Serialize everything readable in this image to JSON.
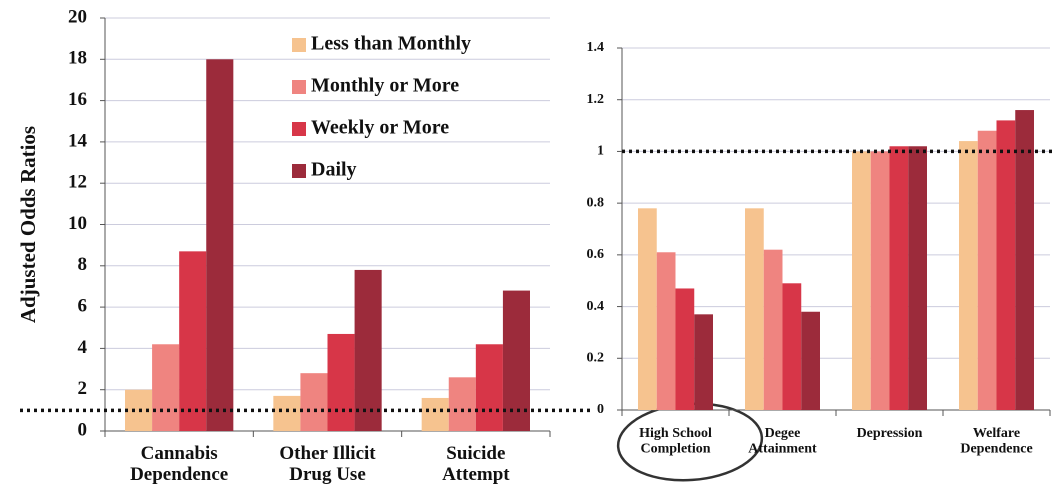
{
  "chart_data": [
    {
      "type": "bar",
      "ylabel": "Adjusted Odds Ratios",
      "categories": [
        "Cannabis\nDependence",
        "Other Illicit\nDrug Use",
        "Suicide\nAttempt"
      ],
      "series": [
        {
          "name": "Less than Monthly",
          "color": "#f6c38f",
          "values": [
            2.0,
            1.7,
            1.6
          ]
        },
        {
          "name": "Monthly or More",
          "color": "#ef8480",
          "values": [
            4.2,
            2.8,
            2.6
          ]
        },
        {
          "name": "Weekly or More",
          "color": "#d73648",
          "values": [
            8.7,
            4.7,
            4.2
          ]
        },
        {
          "name": "Daily",
          "color": "#9c2b3b",
          "values": [
            18,
            7.8,
            6.8
          ]
        }
      ],
      "ylim": [
        0,
        20
      ],
      "yticks": [
        0,
        2,
        4,
        6,
        8,
        10,
        12,
        14,
        16,
        18,
        20
      ],
      "grid": true,
      "reference_line": 1
    },
    {
      "type": "bar",
      "categories": [
        "High School\nCompletion",
        "Degee\nAttainment",
        "Depression",
        "Welfare\nDependence"
      ],
      "series": [
        {
          "name": "Less than Monthly",
          "color": "#f6c38f",
          "values": [
            0.78,
            0.78,
            1.0,
            1.04
          ]
        },
        {
          "name": "Monthly or More",
          "color": "#ef8480",
          "values": [
            0.61,
            0.62,
            1.0,
            1.08
          ]
        },
        {
          "name": "Weekly or More",
          "color": "#d73648",
          "values": [
            0.47,
            0.49,
            1.02,
            1.12
          ]
        },
        {
          "name": "Daily",
          "color": "#9c2b3b",
          "values": [
            0.37,
            0.38,
            1.02,
            1.16
          ]
        }
      ],
      "ylim": [
        0,
        1.4
      ],
      "yticks": [
        0,
        0.2,
        0.4,
        0.6,
        0.8,
        1,
        1.2,
        1.4
      ],
      "grid": true,
      "reference_line": 1
    }
  ]
}
